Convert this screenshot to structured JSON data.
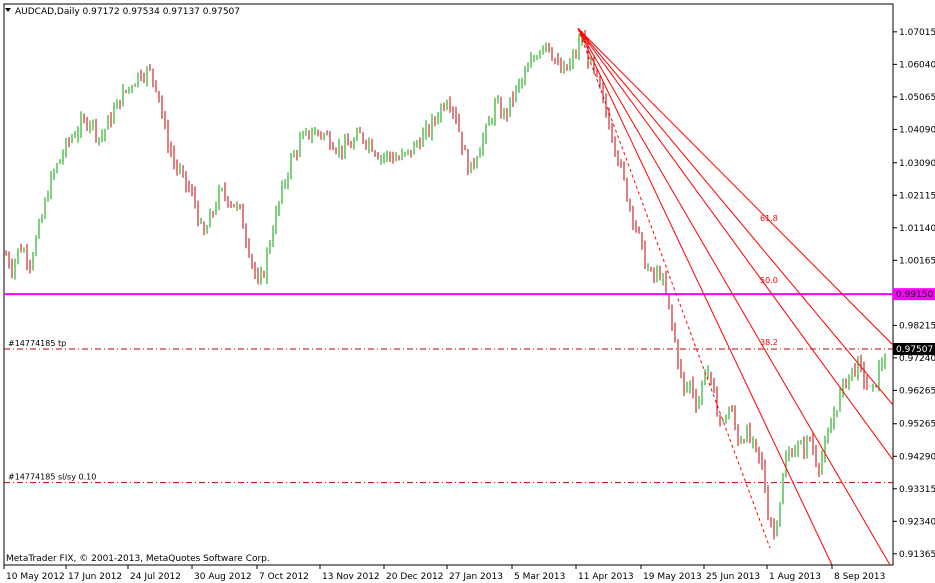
{
  "window": {
    "symbol_line": "AUDCAD,Daily  0.97172 0.97534 0.97137 0.97507",
    "dropdown_icon": "triangle-down-icon"
  },
  "copyright": "MetaTrader FIX, © 2001-2013, MetaQuotes Software Corp.",
  "colors": {
    "bull": "#00a000",
    "bear": "#c00000",
    "fib": "#ff0000",
    "support": "#ff00ff",
    "axis": "#000000"
  },
  "chart_data": {
    "type": "candlestick",
    "y_ticks": [
      "1.07015",
      "1.06040",
      "1.05065",
      "1.04090",
      "1.03090",
      "1.02115",
      "1.01140",
      "1.00165",
      "0.99150",
      "0.98215",
      "0.97507",
      "0.97240",
      "0.96265",
      "0.95265",
      "0.94290",
      "0.93315",
      "0.92340",
      "0.91365"
    ],
    "x_ticks": [
      "10 May 2012",
      "17 Jun 2012",
      "24 Jul 2012",
      "30 Aug 2012",
      "7 Oct 2012",
      "13 Nov 2012",
      "20 Dec 2012",
      "27 Jan 2013",
      "5 Mar 2013",
      "11 Apr 2013",
      "19 May 2013",
      "25 Jun 2013",
      "1 Aug 2013",
      "8 Sep 2013"
    ],
    "ylim": [
      0.9103,
      1.0785
    ],
    "anchors": [
      [
        0,
        1.012
      ],
      [
        5,
        1.004
      ],
      [
        12,
        0.9995
      ],
      [
        20,
        1.006
      ],
      [
        30,
        1.0015
      ],
      [
        40,
        1.012
      ],
      [
        50,
        1.025
      ],
      [
        60,
        1.032
      ],
      [
        70,
        1.038
      ],
      [
        80,
        1.042
      ],
      [
        90,
        1.044
      ],
      [
        100,
        1.038
      ],
      [
        110,
        1.044
      ],
      [
        120,
        1.05
      ],
      [
        130,
        1.054
      ],
      [
        140,
        1.058
      ],
      [
        150,
        1.058
      ],
      [
        158,
        1.053
      ],
      [
        165,
        1.04
      ],
      [
        175,
        1.03
      ],
      [
        185,
        1.025
      ],
      [
        195,
        1.019
      ],
      [
        203,
        1.008
      ],
      [
        210,
        1.014
      ],
      [
        220,
        1.022
      ],
      [
        230,
        1.02
      ],
      [
        240,
        1.016
      ],
      [
        250,
        1.004
      ],
      [
        258,
        0.9935
      ],
      [
        264,
        0.9985
      ],
      [
        270,
        1.008
      ],
      [
        280,
        1.02
      ],
      [
        290,
        1.031
      ],
      [
        300,
        1.037
      ],
      [
        310,
        1.04
      ],
      [
        320,
        1.04
      ],
      [
        330,
        1.038
      ],
      [
        340,
        1.035
      ],
      [
        350,
        1.036
      ],
      [
        360,
        1.039
      ],
      [
        370,
        1.037
      ],
      [
        380,
        1.033
      ],
      [
        390,
        1.033
      ],
      [
        400,
        1.032
      ],
      [
        410,
        1.034
      ],
      [
        420,
        1.038
      ],
      [
        430,
        1.041
      ],
      [
        440,
        1.047
      ],
      [
        448,
        1.051
      ],
      [
        456,
        1.045
      ],
      [
        463,
        1.035
      ],
      [
        470,
        1.028
      ],
      [
        478,
        1.035
      ],
      [
        486,
        1.04
      ],
      [
        495,
        1.048
      ],
      [
        505,
        1.045
      ],
      [
        515,
        1.052
      ],
      [
        525,
        1.057
      ],
      [
        535,
        1.063
      ],
      [
        545,
        1.068
      ],
      [
        552,
        1.064
      ],
      [
        560,
        1.058
      ],
      [
        568,
        1.059
      ],
      [
        576,
        1.064
      ],
      [
        582,
        1.069
      ],
      [
        588,
        1.063
      ],
      [
        596,
        1.056
      ],
      [
        604,
        1.048
      ],
      [
        612,
        1.04
      ],
      [
        620,
        1.03
      ],
      [
        628,
        1.02
      ],
      [
        636,
        1.012
      ],
      [
        644,
        1.002
      ],
      [
        652,
        0.996
      ],
      [
        660,
        0.998
      ],
      [
        666,
        0.991
      ],
      [
        672,
        0.982
      ],
      [
        678,
        0.972
      ],
      [
        684,
        0.962
      ],
      [
        690,
        0.965
      ],
      [
        698,
        0.958
      ],
      [
        706,
        0.971
      ],
      [
        714,
        0.96
      ],
      [
        722,
        0.952
      ],
      [
        730,
        0.958
      ],
      [
        738,
        0.948
      ],
      [
        746,
        0.95
      ],
      [
        754,
        0.945
      ],
      [
        762,
        0.94
      ],
      [
        768,
        0.926
      ],
      [
        774,
        0.92
      ],
      [
        780,
        0.93
      ],
      [
        786,
        0.942
      ],
      [
        794,
        0.946
      ],
      [
        802,
        0.945
      ],
      [
        810,
        0.948
      ],
      [
        818,
        0.94
      ],
      [
        826,
        0.946
      ],
      [
        834,
        0.956
      ],
      [
        842,
        0.963
      ],
      [
        850,
        0.968
      ],
      [
        858,
        0.97
      ],
      [
        866,
        0.965
      ],
      [
        872,
        0.961
      ],
      [
        878,
        0.968
      ],
      [
        884,
        0.973
      ]
    ],
    "horizontal_lines": [
      {
        "price": 0.9915,
        "label": "0.99150",
        "color": "#ff00ff",
        "style": "solid"
      },
      {
        "price": 0.97507,
        "label": "#14774185 tp",
        "color": "#c00000",
        "style": "dashdot"
      },
      {
        "price": 0.935,
        "label": "#14774185 sl/sy 0.10",
        "color": "#c00000",
        "style": "dashdot"
      }
    ],
    "current_price": "0.97507",
    "fib_levels": [
      "61.8",
      "50.0",
      "38.2"
    ]
  }
}
